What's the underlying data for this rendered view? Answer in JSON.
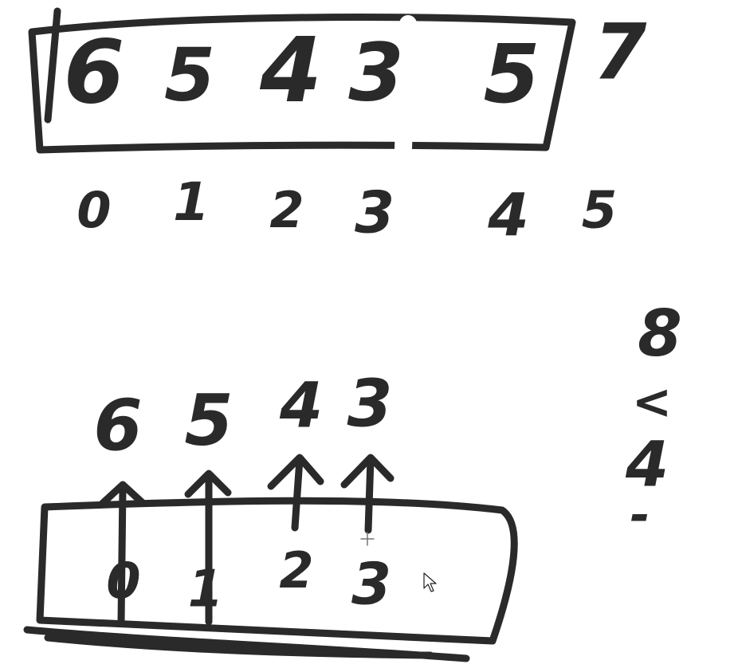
{
  "ink_color": "#2a2a2a",
  "top_array": {
    "values": [
      "6",
      "5",
      "4",
      "3",
      "5"
    ],
    "outside_value": "7",
    "indices": [
      "0",
      "1",
      "2",
      "3",
      "4",
      "5"
    ]
  },
  "bottom_array": {
    "values": [
      "6",
      "5",
      "4",
      "3"
    ],
    "indices": [
      "0",
      "1",
      "2",
      "3"
    ]
  },
  "side_note": {
    "lines": [
      "8",
      "<",
      "4",
      "-"
    ]
  },
  "cursor": {
    "icon": "arrow-pointer-icon"
  }
}
